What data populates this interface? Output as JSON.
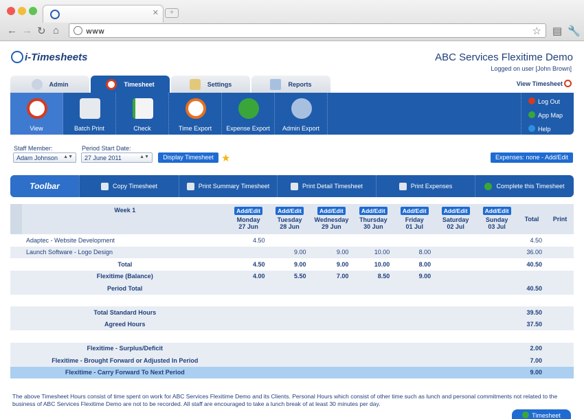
{
  "browser": {
    "url": "www",
    "new_tab_label": "+"
  },
  "header": {
    "logo_text": "i-Timesheets",
    "app_title": "ABC Services Flexitime Demo",
    "logged_on": "Logged on user [John Brown]"
  },
  "main_tabs": [
    {
      "label": "Admin",
      "icon": "gear-icon"
    },
    {
      "label": "Timesheet",
      "icon": "clock-icon",
      "active": true
    },
    {
      "label": "Settings",
      "icon": "wrench-icon"
    },
    {
      "label": "Reports",
      "icon": "report-icon"
    }
  ],
  "view_timesheet": "View Timesheet",
  "subtoolbar": [
    {
      "label": "View",
      "icon": "timesheet-view-icon",
      "selected": true
    },
    {
      "label": "Batch Print",
      "icon": "printer-icon"
    },
    {
      "label": "Check",
      "icon": "checklist-icon"
    },
    {
      "label": "Time Export",
      "icon": "time-export-icon"
    },
    {
      "label": "Expense Export",
      "icon": "expense-export-icon"
    },
    {
      "label": "Admin Export",
      "icon": "admin-export-icon"
    }
  ],
  "side_links": [
    {
      "label": "Log Out",
      "icon": "logout-icon",
      "color": "#d43b1f"
    },
    {
      "label": "App Map",
      "icon": "appmap-icon",
      "color": "#3aa63a"
    },
    {
      "label": "Help",
      "icon": "help-icon",
      "color": "#2d8fe0"
    }
  ],
  "filters": {
    "staff_label": "Staff Member:",
    "staff_value": "Adam Johnson",
    "period_label": "Period Start Date:",
    "period_value": "27 June 2011",
    "display_button": "Display Timesheet",
    "expenses_button": "Expenses: none - Add/Edit"
  },
  "toolbar": {
    "title": "Toolbar",
    "items": [
      "Copy Timesheet",
      "Print Summary Timesheet",
      "Print Detail Timesheet",
      "Print Expenses",
      "Complete this Timesheet"
    ]
  },
  "table": {
    "week_label": "Week 1",
    "add_edit": "Add/Edit",
    "total_col": "Total",
    "print_col": "Print",
    "days": [
      {
        "day": "Monday",
        "date": "27 Jun"
      },
      {
        "day": "Tuesday",
        "date": "28 Jun"
      },
      {
        "day": "Wednesday",
        "date": "29 Jun"
      },
      {
        "day": "Thursday",
        "date": "30 Jun"
      },
      {
        "day": "Friday",
        "date": "01 Jul"
      },
      {
        "day": "Saturday",
        "date": "02 Jul"
      },
      {
        "day": "Sunday",
        "date": "03 Jul"
      }
    ],
    "rows": [
      {
        "label": "Adaptec - Website Development",
        "values": [
          "4.50",
          "",
          "",
          "",
          "",
          "",
          ""
        ],
        "total": "4.50"
      },
      {
        "label": "Launch Software - Logo Design",
        "values": [
          "",
          "9.00",
          "9.00",
          "10.00",
          "8.00",
          "",
          ""
        ],
        "total": "36.00"
      }
    ],
    "totals": {
      "label": "Total",
      "values": [
        "4.50",
        "9.00",
        "9.00",
        "10.00",
        "8.00",
        "",
        ""
      ],
      "total": "40.50"
    },
    "flexitime_balance": {
      "label": "Flexitime (Balance)",
      "values": [
        "4.00",
        "5.50",
        "7.00",
        "8.50",
        "9.00",
        "",
        ""
      ]
    },
    "period_total": {
      "label": "Period Total",
      "total": "40.50"
    },
    "standard_hours": {
      "label": "Total Standard Hours",
      "total": "39.50"
    },
    "agreed_hours": {
      "label": "Agreed Hours",
      "total": "37.50"
    },
    "surplus": {
      "label": "Flexitime - Surplus/Deficit",
      "total": "2.00"
    },
    "brought_forward": {
      "label": "Flexitime - Brought Forward or Adjusted In Period",
      "total": "7.00"
    },
    "carry_forward": {
      "label": "Flexitime - Carry Forward To Next Period",
      "total": "9.00"
    }
  },
  "footnote": "The above Timesheet Hours consist of time spent on work for ABC Services Flexitime Demo and its Clients. Personal Hours which consist of other time such as lunch and personal commitments not related to the business of ABC Services Flexitime Demo are not to be recorded. All staff are encouraged to take a lunch break of at least 30 minutes per day.",
  "bottom_button": "Timesheet"
}
